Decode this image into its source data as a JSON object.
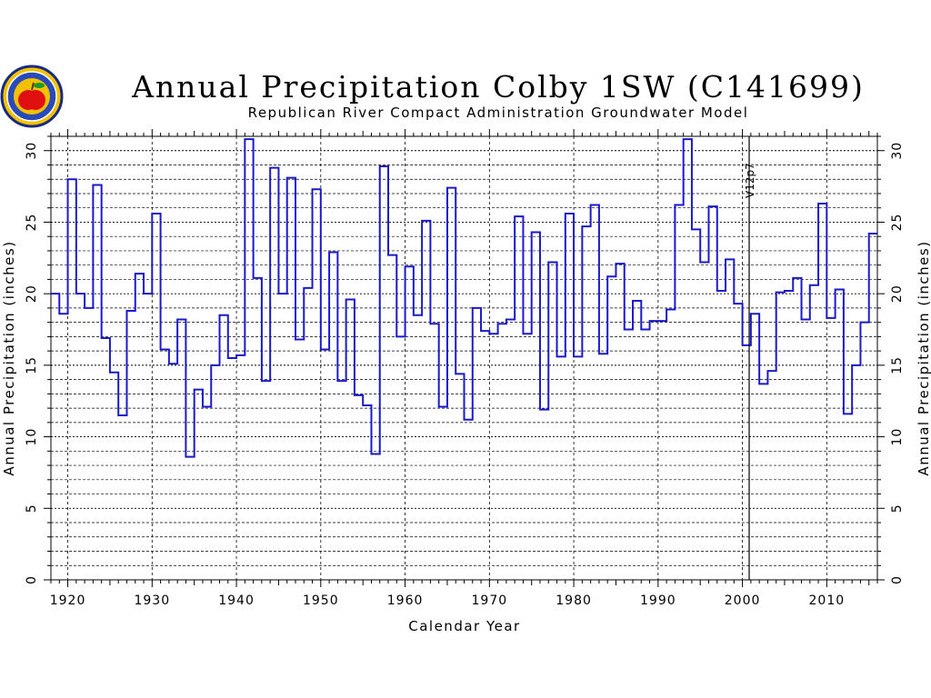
{
  "colors": {
    "series": "#1a1acc",
    "grid": "#000000"
  },
  "logo": {
    "icon": "apple-seal-logo"
  },
  "chart_data": {
    "type": "line",
    "step": true,
    "title": "Annual Precipitation Colby 1SW (C141699)",
    "subtitle": "Republican River Compact Administration Groundwater Model",
    "xlabel": "Calendar Year",
    "ylabel": "Annual Precipitation (inches)",
    "xlim": [
      1918,
      2016
    ],
    "ylim": [
      0,
      31
    ],
    "xticks": [
      1920,
      1930,
      1940,
      1950,
      1960,
      1970,
      1980,
      1990,
      2000,
      2010
    ],
    "yticks": [
      0,
      5,
      10,
      15,
      20,
      25,
      30
    ],
    "grid": true,
    "marker": {
      "x": 2000.8,
      "label": "V12p7"
    },
    "series": [
      {
        "x": [
          1918,
          1919,
          1920,
          1921,
          1922,
          1923,
          1924,
          1925,
          1926,
          1927,
          1928,
          1929,
          1930,
          1931,
          1932,
          1933,
          1934,
          1935,
          1936,
          1937,
          1938,
          1939,
          1940,
          1941,
          1942,
          1943,
          1944,
          1945,
          1946,
          1947,
          1948,
          1949,
          1950,
          1951,
          1952,
          1953,
          1954,
          1955,
          1956,
          1957,
          1958,
          1959,
          1960,
          1961,
          1962,
          1963,
          1964,
          1965,
          1966,
          1967,
          1968,
          1969,
          1970,
          1971,
          1972,
          1973,
          1974,
          1975,
          1976,
          1977,
          1978,
          1979,
          1980,
          1981,
          1982,
          1983,
          1984,
          1985,
          1986,
          1987,
          1988,
          1989,
          1990,
          1991,
          1992,
          1993,
          1994,
          1995,
          1996,
          1997,
          1998,
          1999,
          2000,
          2001,
          2002,
          2003,
          2004,
          2005,
          2006,
          2007,
          2008,
          2009,
          2010,
          2011,
          2012,
          2013,
          2014,
          2015
        ],
        "values": [
          20.0,
          18.6,
          28.0,
          20.0,
          19.0,
          27.6,
          16.9,
          14.5,
          11.5,
          18.8,
          21.4,
          20.0,
          25.6,
          16.1,
          15.1,
          18.2,
          8.6,
          13.3,
          12.1,
          15.0,
          18.5,
          15.5,
          15.7,
          30.8,
          21.1,
          13.9,
          28.8,
          20.0,
          28.1,
          16.8,
          20.4,
          27.3,
          16.1,
          22.9,
          13.9,
          19.6,
          12.9,
          12.2,
          8.8,
          28.9,
          22.7,
          17.0,
          21.9,
          18.5,
          25.1,
          17.9,
          12.1,
          27.4,
          14.4,
          11.2,
          19.0,
          17.4,
          17.2,
          17.9,
          18.2,
          25.4,
          17.2,
          24.3,
          11.9,
          22.2,
          15.6,
          25.6,
          15.6,
          24.7,
          26.2,
          15.8,
          21.2,
          22.1,
          17.5,
          19.5,
          17.5,
          18.1,
          18.1,
          18.9,
          26.2,
          30.8,
          24.5,
          22.2,
          26.1,
          20.2,
          22.4,
          19.3,
          16.4,
          18.6,
          13.7,
          14.6,
          20.1,
          20.2,
          21.1,
          18.2,
          20.6,
          26.3,
          18.3,
          20.3,
          11.6,
          15.0,
          18.0,
          24.2
        ]
      }
    ]
  }
}
